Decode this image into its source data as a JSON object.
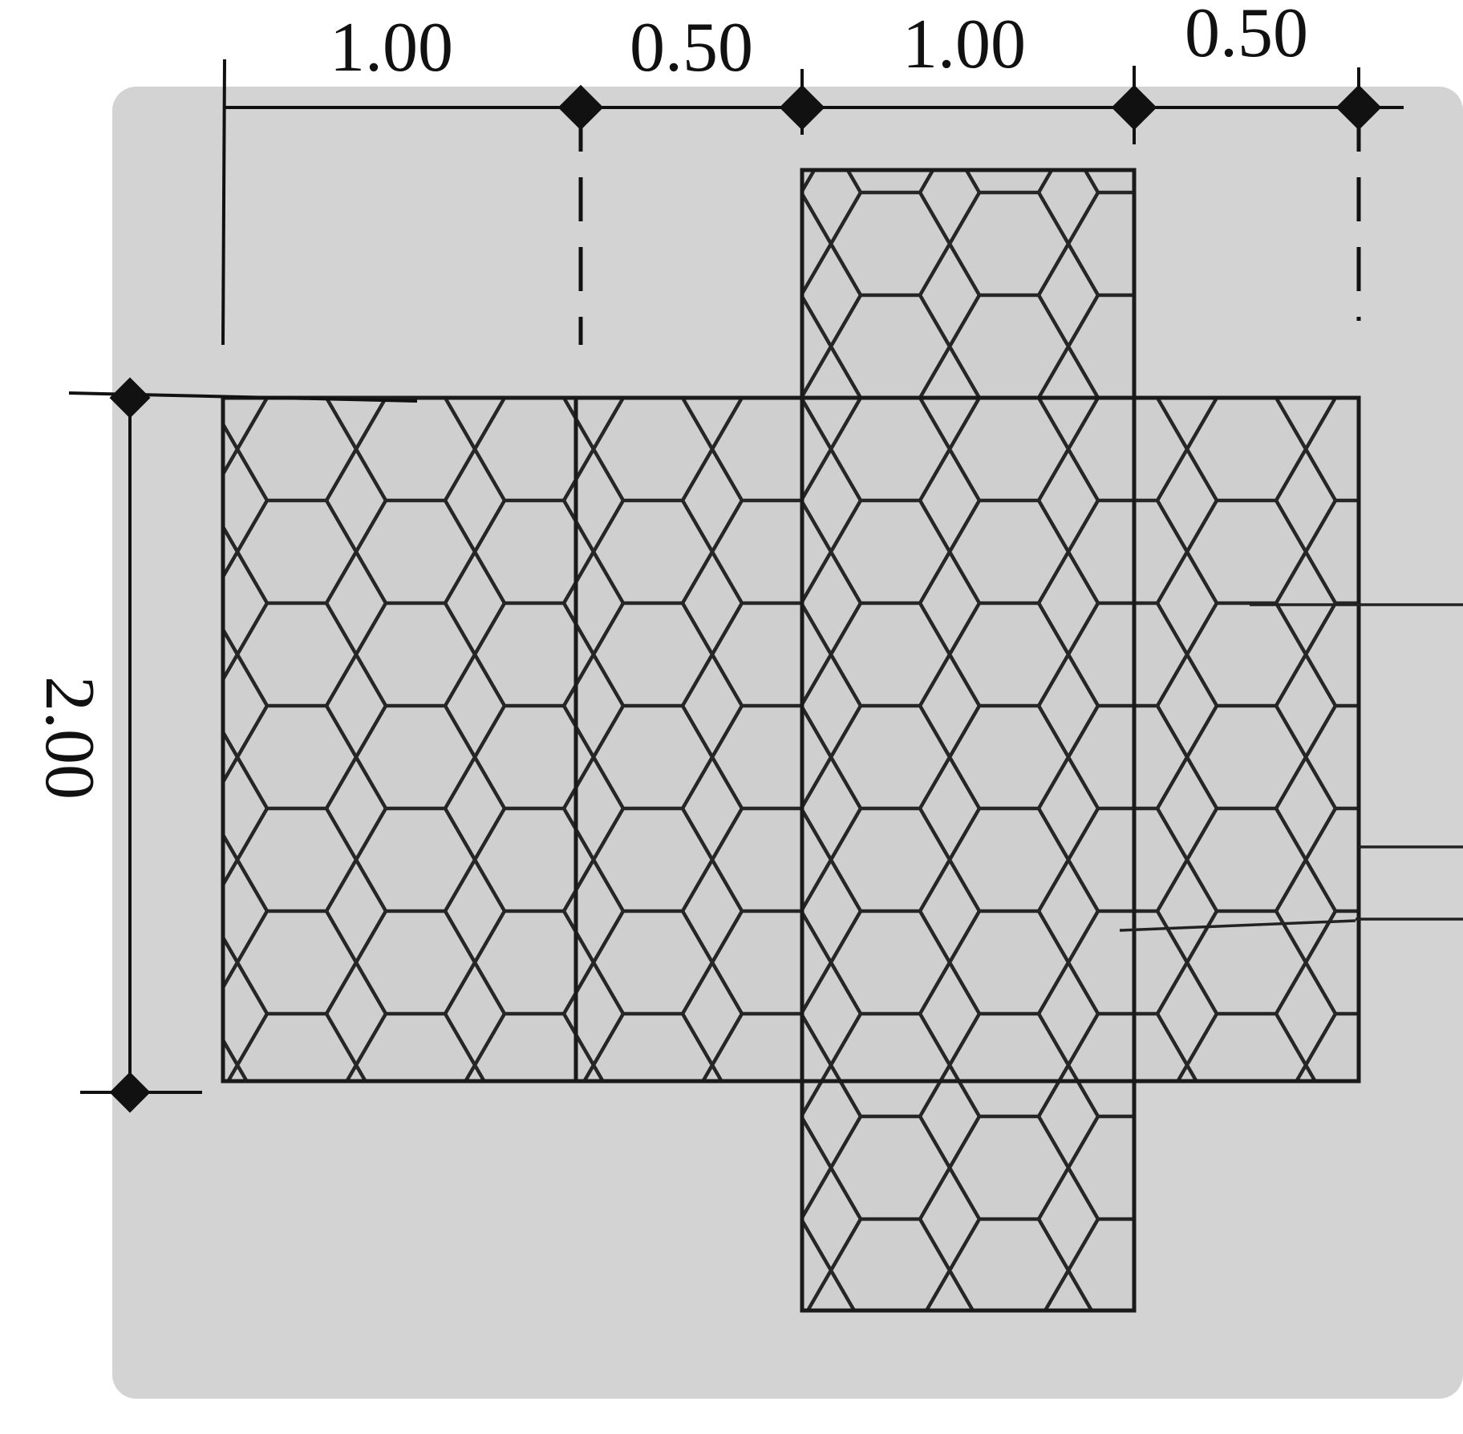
{
  "colors": {
    "background": "#d3d3d3",
    "page": "#ffffff",
    "mesh_fill": "#cfcfcf",
    "mesh_line": "#262626",
    "line": "#111111"
  },
  "dimensions": {
    "top": [
      "1.00",
      "0.50",
      "1.00",
      "0.50"
    ],
    "side": "2.00"
  },
  "parts": {
    "base_panels": 4,
    "lids": [
      "top-flap",
      "bottom-flap"
    ],
    "leader_lines": 3
  }
}
